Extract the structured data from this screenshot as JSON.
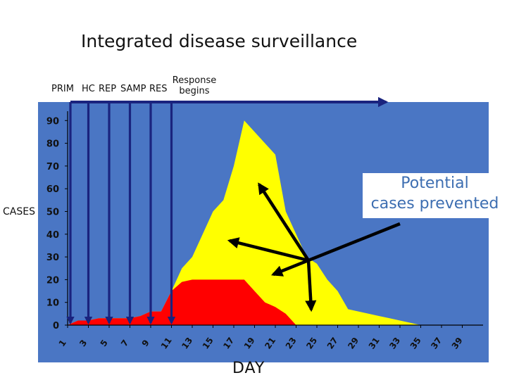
{
  "title": "Integrated disease surveillance",
  "stage_labels": {
    "prim": "PRIM",
    "hc": "HC",
    "rep": "REP",
    "samp": "SAMP",
    "res": "RES",
    "response_line1": "Response",
    "response_line2": "begins"
  },
  "annotation": {
    "line1": "Potential",
    "line2": "cases prevented"
  },
  "colors": {
    "plot_background": "#4a76c4",
    "unchecked_epidemic": "#ffff00",
    "with_response": "#ff0000",
    "arrows": "#1a237e",
    "annotation_text": "#3d6eb1"
  },
  "chart_data": {
    "type": "area",
    "title": "Integrated disease surveillance",
    "xlabel": "DAY",
    "ylabel": "CASES",
    "x_ticks": [
      "1",
      "3",
      "5",
      "7",
      "9",
      "11",
      "13",
      "15",
      "17",
      "19",
      "21",
      "23",
      "25",
      "27",
      "29",
      "31",
      "33",
      "35",
      "37",
      "39"
    ],
    "y_ticks": [
      "0",
      "10",
      "20",
      "30",
      "40",
      "50",
      "60",
      "70",
      "80",
      "90"
    ],
    "xlim": [
      1,
      41
    ],
    "ylim": [
      0,
      100
    ],
    "grid": false,
    "series": [
      {
        "x": [
          1,
          2,
          3,
          4,
          5,
          6,
          7,
          8,
          9,
          10,
          11,
          12,
          13,
          14,
          15,
          16,
          17,
          18,
          19,
          20,
          21,
          22,
          23,
          24,
          25,
          26,
          27,
          28,
          29,
          30,
          31,
          32,
          33,
          34,
          35,
          36
        ],
        "y": [
          0,
          2,
          2,
          3,
          3,
          3,
          3,
          4,
          6,
          6,
          15,
          25,
          30,
          40,
          50,
          55,
          70,
          90,
          85,
          80,
          75,
          50,
          40,
          30,
          27,
          20,
          15,
          7,
          6,
          5,
          4,
          3,
          2,
          1,
          0,
          0
        ]
      },
      {
        "x": [
          1,
          2,
          3,
          4,
          5,
          6,
          7,
          8,
          9,
          10,
          11,
          12,
          13,
          14,
          15,
          16,
          17,
          18,
          19,
          20,
          21,
          22,
          23,
          24
        ],
        "y": [
          0,
          2,
          2,
          3,
          3,
          3,
          3,
          4,
          6,
          6,
          15,
          19,
          20,
          20,
          20,
          20,
          20,
          20,
          15,
          10,
          8,
          5,
          0,
          0
        ]
      }
    ],
    "surveillance_stages_day": [
      1,
      3,
      5,
      7,
      9,
      11
    ],
    "response_span_days": [
      1,
      31
    ]
  }
}
